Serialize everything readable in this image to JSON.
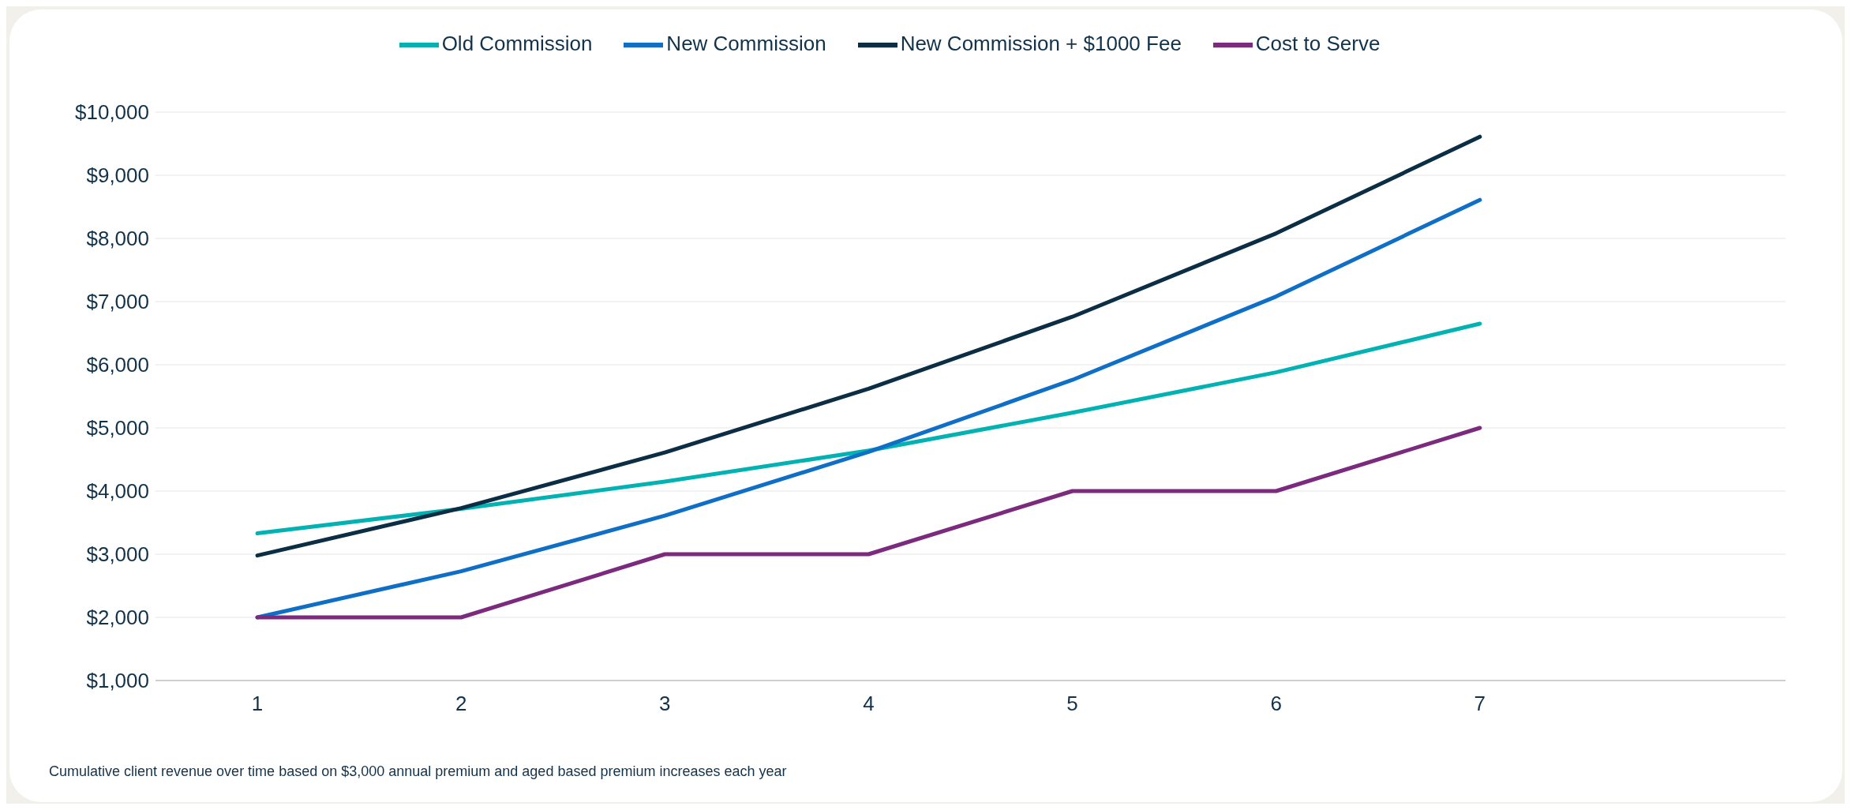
{
  "chart_data": {
    "type": "line",
    "categories": [
      "1",
      "2",
      "3",
      "4",
      "5",
      "6",
      "7",
      null
    ],
    "series": [
      {
        "name": "Old Commission",
        "color": "#00b2b2",
        "values": [
          3330,
          3720,
          4150,
          4640,
          5240,
          5880,
          6650,
          null
        ]
      },
      {
        "name": "New Commission",
        "color": "#0f6fc6",
        "values": [
          2000,
          2730,
          3610,
          4620,
          5760,
          7080,
          8610,
          null
        ]
      },
      {
        "name": "New Commission + $1000 Fee",
        "color": "#0b2e45",
        "values": [
          2980,
          3730,
          4610,
          5620,
          6760,
          8080,
          9610,
          null
        ]
      },
      {
        "name": "Cost to Serve",
        "color": "#7b2a7e",
        "values": [
          2000,
          2000,
          3000,
          3000,
          4000,
          4000,
          5000,
          null
        ]
      }
    ],
    "ylim": [
      1000,
      10000
    ],
    "yticks": [
      {
        "value": 1000,
        "label": "$1,000"
      },
      {
        "value": 2000,
        "label": "$2,000"
      },
      {
        "value": 3000,
        "label": "$3,000"
      },
      {
        "value": 4000,
        "label": "$4,000"
      },
      {
        "value": 5000,
        "label": "$5,000"
      },
      {
        "value": 6000,
        "label": "$6,000"
      },
      {
        "value": 7000,
        "label": "$7,000"
      },
      {
        "value": 8000,
        "label": "$8,000"
      },
      {
        "value": 9000,
        "label": "$9,000"
      },
      {
        "value": 10000,
        "label": "$10,000"
      }
    ],
    "grid": "y",
    "legend": "top",
    "marker": "none",
    "line_style": "solid",
    "annotations": [
      "Cumulative client revenue over time based on $3,000 annual premium and aged based premium increases each year"
    ]
  }
}
